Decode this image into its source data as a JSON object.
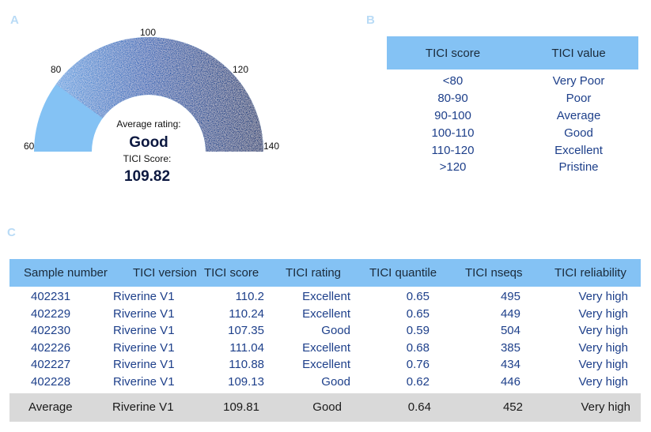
{
  "panels": {
    "a": "A",
    "b": "B",
    "c": "C"
  },
  "gauge": {
    "ticks": [
      "60",
      "80",
      "100",
      "120",
      "140"
    ],
    "avg_label": "Average rating:",
    "rating": "Good",
    "score_label": "TICI Score:",
    "score": "109.82",
    "colors": {
      "light": "#84c2f4",
      "dark": "#0a2d6e"
    }
  },
  "chart_data": {
    "type": "gauge",
    "min": 60,
    "max": 140,
    "value": 109.82,
    "ticks": [
      60,
      80,
      100,
      120,
      140
    ],
    "rating": "Good"
  },
  "score_table": {
    "headers": [
      "TICI score",
      "TICI value"
    ],
    "rows": [
      [
        "<80",
        "Very Poor"
      ],
      [
        "80-90",
        "Poor"
      ],
      [
        "90-100",
        "Average"
      ],
      [
        "100-110",
        "Good"
      ],
      [
        "110-120",
        "Excellent"
      ],
      [
        ">120",
        "Pristine"
      ]
    ]
  },
  "sample_table": {
    "headers": [
      "Sample number",
      "TICI version",
      "TICI score",
      "TICI rating",
      "TICI quantile",
      "TICI nseqs",
      "TICI reliability"
    ],
    "rows": [
      [
        "402231",
        "Riverine V1",
        "110.2",
        "Excellent",
        "0.65",
        "495",
        "Very high"
      ],
      [
        "402229",
        "Riverine V1",
        "110.24",
        "Excellent",
        "0.65",
        "449",
        "Very high"
      ],
      [
        "402230",
        "Riverine V1",
        "107.35",
        "Good",
        "0.59",
        "504",
        "Very high"
      ],
      [
        "402226",
        "Riverine V1",
        "111.04",
        "Excellent",
        "0.68",
        "385",
        "Very high"
      ],
      [
        "402227",
        "Riverine V1",
        "110.88",
        "Excellent",
        "0.76",
        "434",
        "Very high"
      ],
      [
        "402228",
        "Riverine V1",
        "109.13",
        "Good",
        "0.62",
        "446",
        "Very high"
      ]
    ],
    "average": [
      "Average",
      "Riverine V1",
      "109.81",
      "Good",
      "0.64",
      "452",
      "Very high"
    ]
  }
}
